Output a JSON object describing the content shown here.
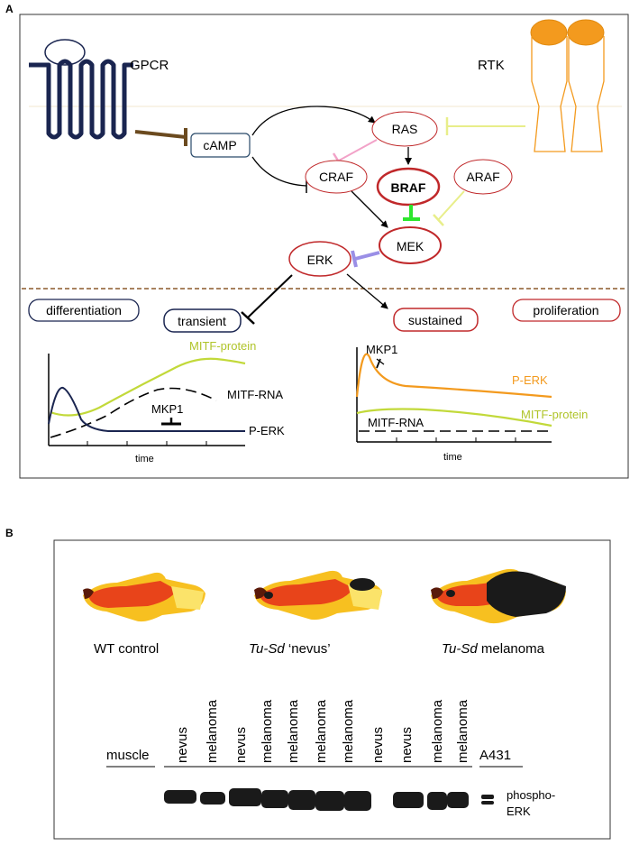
{
  "panel_a": {
    "letter": "A",
    "receptors": {
      "gpcr": "GPCR",
      "rtk": "RTK"
    },
    "nodes": {
      "camp": "cAMP",
      "ras": "RAS",
      "craf": "CRAF",
      "braf": "BRAF",
      "araf": "ARAF",
      "mek": "MEK",
      "erk": "ERK"
    },
    "outcomes": {
      "differentiation": "differentiation",
      "transient": "transient",
      "sustained": "sustained",
      "proliferation": "proliferation"
    },
    "left_plot": {
      "mitf_protein": "MITF-protein",
      "mitf_rna": "MITF-RNA",
      "mkp1": "MKP1",
      "perk": "P-ERK",
      "xlabel": "time"
    },
    "right_plot": {
      "mkp1": "MKP1",
      "perk": "P-ERK",
      "mitf_rna": "MITF-RNA",
      "mitf_protein": "MITF-protein",
      "xlabel": "time"
    },
    "colors": {
      "navy": "#1a2550",
      "red": "#c0282a",
      "orange": "#f39a1e",
      "lime": "#c2d93a",
      "brown": "#6b4a1f",
      "pink": "#f2a2c8",
      "green": "#2ee62e",
      "lavender": "#9a8fe6",
      "yellow": "#e8ee8a"
    }
  },
  "panel_b": {
    "letter": "B",
    "fish_labels": {
      "wt": "WT control",
      "nevus_prefix": "Tu-Sd",
      "nevus_suffix": " ‘nevus’",
      "melanoma_prefix": "Tu-Sd",
      "melanoma_suffix": " melanoma"
    },
    "lanes": [
      "nevus",
      "melanoma",
      "nevus",
      "melanoma",
      "melanoma",
      "melanoma",
      "melanoma",
      "nevus",
      "nevus",
      "melanoma",
      "melanoma"
    ],
    "muscle": "muscle",
    "a431": "A431",
    "blot_label_line1": "phospho-",
    "blot_label_line2": "ERK"
  }
}
